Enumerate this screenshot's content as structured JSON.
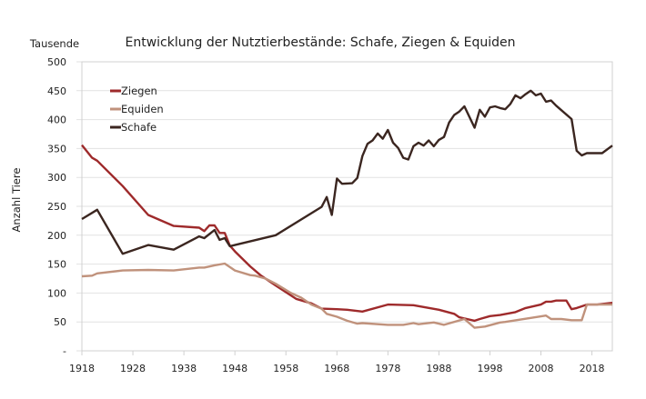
{
  "chart_data": {
    "type": "line",
    "title": "Entwicklung der Nutztierbestände: Schafe, Ziegen & Equiden",
    "unit_label": "Tausende",
    "ylabel": "Anzahl Tiere",
    "xlabel": "",
    "xlim": [
      1918,
      2022
    ],
    "ylim": [
      0,
      500
    ],
    "x_ticks": [
      1918,
      1928,
      1938,
      1948,
      1958,
      1968,
      1978,
      1988,
      1998,
      2008,
      2018
    ],
    "y_ticks": [
      0,
      50,
      100,
      150,
      200,
      250,
      300,
      350,
      400,
      450,
      500
    ],
    "y_tick_labels": [
      "-",
      "50",
      "100",
      "150",
      "200",
      "250",
      "300",
      "350",
      "400",
      "450",
      "500"
    ],
    "grid": true,
    "legend_position": "top-left",
    "series": [
      {
        "name": "Ziegen",
        "color": "#9e2a2b",
        "points": [
          [
            1918,
            356
          ],
          [
            1920,
            334
          ],
          [
            1921,
            329
          ],
          [
            1926,
            285
          ],
          [
            1931,
            235
          ],
          [
            1936,
            216
          ],
          [
            1941,
            213
          ],
          [
            1942,
            207
          ],
          [
            1943,
            217
          ],
          [
            1944,
            217
          ],
          [
            1945,
            204
          ],
          [
            1946,
            204
          ],
          [
            1947,
            182
          ],
          [
            1948,
            172
          ],
          [
            1951,
            146
          ],
          [
            1953,
            131
          ],
          [
            1956,
            113
          ],
          [
            1960,
            90
          ],
          [
            1963,
            82
          ],
          [
            1965,
            73
          ],
          [
            1968,
            72
          ],
          [
            1970,
            71
          ],
          [
            1973,
            68
          ],
          [
            1978,
            80
          ],
          [
            1983,
            79
          ],
          [
            1988,
            71
          ],
          [
            1991,
            64
          ],
          [
            1992,
            58
          ],
          [
            1995,
            52
          ],
          [
            1996,
            55
          ],
          [
            1998,
            60
          ],
          [
            2000,
            62
          ],
          [
            2003,
            67
          ],
          [
            2005,
            74
          ],
          [
            2008,
            80
          ],
          [
            2009,
            85
          ],
          [
            2010,
            85
          ],
          [
            2011,
            87
          ],
          [
            2013,
            87
          ],
          [
            2014,
            72
          ],
          [
            2015,
            74
          ],
          [
            2017,
            80
          ],
          [
            2019,
            80
          ],
          [
            2022,
            83
          ]
        ]
      },
      {
        "name": "Equiden",
        "color": "#c0927c",
        "points": [
          [
            1918,
            129
          ],
          [
            1920,
            130
          ],
          [
            1921,
            134
          ],
          [
            1926,
            139
          ],
          [
            1931,
            140
          ],
          [
            1936,
            139
          ],
          [
            1941,
            144
          ],
          [
            1942,
            144
          ],
          [
            1944,
            148
          ],
          [
            1946,
            151
          ],
          [
            1948,
            139
          ],
          [
            1951,
            131
          ],
          [
            1952,
            130
          ],
          [
            1954,
            125
          ],
          [
            1956,
            116
          ],
          [
            1959,
            100
          ],
          [
            1961,
            92
          ],
          [
            1963,
            80
          ],
          [
            1965,
            73
          ],
          [
            1966,
            64
          ],
          [
            1968,
            59
          ],
          [
            1970,
            52
          ],
          [
            1972,
            47
          ],
          [
            1973,
            48
          ],
          [
            1978,
            45
          ],
          [
            1981,
            45
          ],
          [
            1983,
            48
          ],
          [
            1984,
            46
          ],
          [
            1987,
            49
          ],
          [
            1989,
            45
          ],
          [
            1993,
            55
          ],
          [
            1995,
            40
          ],
          [
            1997,
            42
          ],
          [
            2000,
            49
          ],
          [
            2001,
            50
          ],
          [
            2009,
            61
          ],
          [
            2010,
            55
          ],
          [
            2012,
            55
          ],
          [
            2014,
            53
          ],
          [
            2016,
            53
          ],
          [
            2017,
            80
          ],
          [
            2019,
            80
          ],
          [
            2022,
            80
          ]
        ]
      },
      {
        "name": "Schafe",
        "color": "#3b2620",
        "points": [
          [
            1918,
            228
          ],
          [
            1921,
            244
          ],
          [
            1926,
            168
          ],
          [
            1931,
            183
          ],
          [
            1936,
            175
          ],
          [
            1941,
            198
          ],
          [
            1942,
            195
          ],
          [
            1944,
            209
          ],
          [
            1945,
            192
          ],
          [
            1946,
            195
          ],
          [
            1947,
            181
          ],
          [
            1948,
            183
          ],
          [
            1956,
            200
          ],
          [
            1965,
            249
          ],
          [
            1966,
            266
          ],
          [
            1967,
            235
          ],
          [
            1968,
            298
          ],
          [
            1969,
            289
          ],
          [
            1971,
            290
          ],
          [
            1972,
            299
          ],
          [
            1973,
            337
          ],
          [
            1974,
            358
          ],
          [
            1975,
            364
          ],
          [
            1976,
            376
          ],
          [
            1977,
            367
          ],
          [
            1978,
            382
          ],
          [
            1979,
            360
          ],
          [
            1980,
            351
          ],
          [
            1981,
            334
          ],
          [
            1982,
            331
          ],
          [
            1983,
            354
          ],
          [
            1984,
            360
          ],
          [
            1985,
            355
          ],
          [
            1986,
            364
          ],
          [
            1987,
            354
          ],
          [
            1988,
            365
          ],
          [
            1989,
            370
          ],
          [
            1990,
            395
          ],
          [
            1991,
            408
          ],
          [
            1992,
            414
          ],
          [
            1993,
            423
          ],
          [
            1995,
            386
          ],
          [
            1996,
            417
          ],
          [
            1997,
            405
          ],
          [
            1998,
            421
          ],
          [
            1999,
            423
          ],
          [
            2000,
            420
          ],
          [
            2001,
            418
          ],
          [
            2002,
            427
          ],
          [
            2003,
            442
          ],
          [
            2004,
            437
          ],
          [
            2005,
            444
          ],
          [
            2006,
            450
          ],
          [
            2007,
            442
          ],
          [
            2008,
            445
          ],
          [
            2009,
            431
          ],
          [
            2010,
            433
          ],
          [
            2011,
            424
          ],
          [
            2014,
            401
          ],
          [
            2015,
            346
          ],
          [
            2016,
            338
          ],
          [
            2017,
            342
          ],
          [
            2020,
            342
          ],
          [
            2022,
            355
          ]
        ]
      }
    ]
  }
}
